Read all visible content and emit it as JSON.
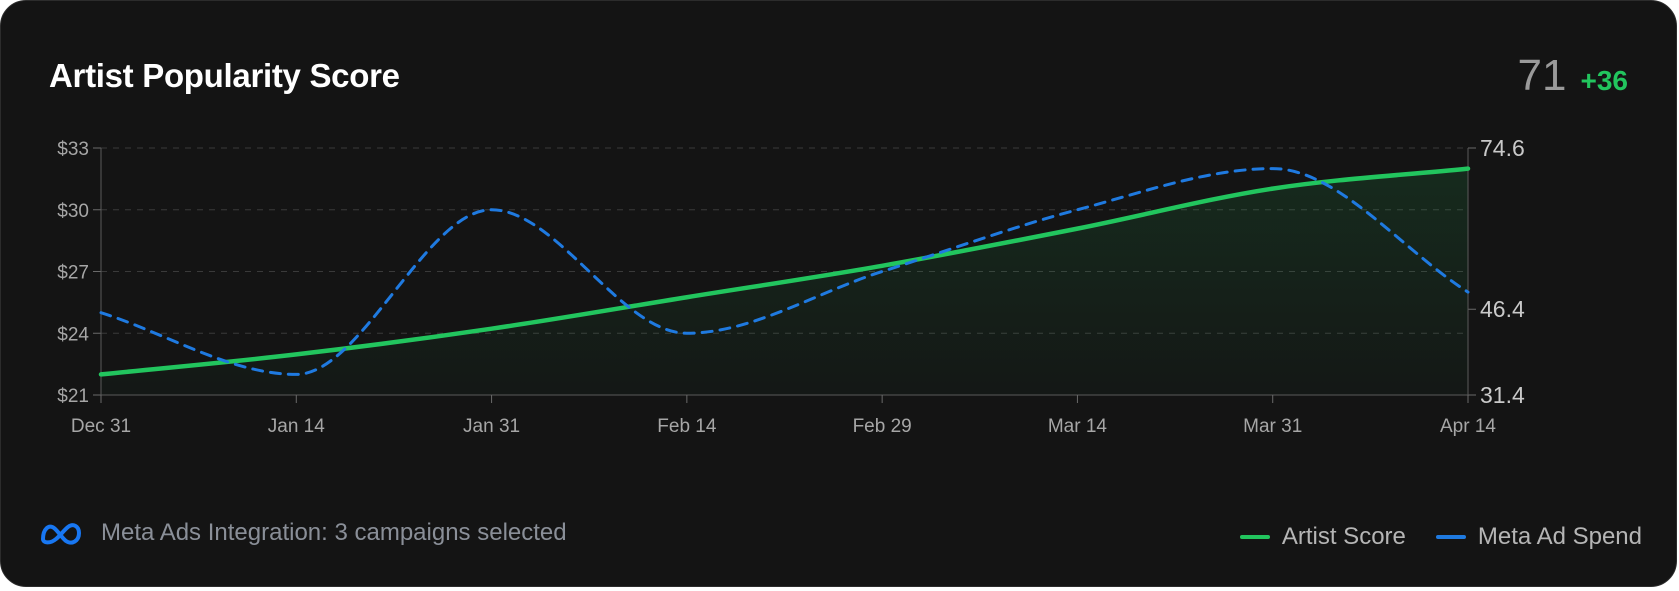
{
  "header": {
    "title": "Artist Popularity Score",
    "score": "71",
    "delta": "+36"
  },
  "footer": {
    "integration_text": "Meta Ads Integration: 3 campaigns selected",
    "icon": "meta-logo-icon"
  },
  "legend": [
    {
      "label": "Artist Score",
      "color": "#22c55e"
    },
    {
      "label": "Meta Ad Spend",
      "color": "#1f7ae0"
    }
  ],
  "chart_data": {
    "type": "line",
    "x": [
      "Dec 31",
      "Jan 14",
      "Jan 31",
      "Feb 14",
      "Feb 29",
      "Mar 14",
      "Mar 31",
      "Apr 14"
    ],
    "y_left": {
      "ticks": [
        "$33",
        "$30",
        "$27",
        "$24",
        "$21"
      ],
      "tick_values": [
        33,
        30,
        27,
        24,
        21
      ],
      "ylim": [
        21,
        33
      ]
    },
    "y_right": {
      "ticks": [
        "74.6",
        "46.4",
        "31.4"
      ],
      "tick_values": [
        74.6,
        46.4,
        31.4
      ],
      "ylim": [
        31.4,
        74.6
      ]
    },
    "grid": true,
    "series": [
      {
        "name": "Artist Score",
        "axis": "right",
        "color": "#22c55e",
        "style": "solid",
        "area": true,
        "values": [
          35,
          38.5,
          43,
          48.5,
          54,
          60.5,
          67.5,
          71
        ]
      },
      {
        "name": "Meta Ad Spend",
        "axis": "left",
        "color": "#1f7ae0",
        "style": "dashed",
        "values": [
          25,
          22,
          30,
          24,
          27,
          30,
          32,
          26
        ]
      }
    ]
  }
}
